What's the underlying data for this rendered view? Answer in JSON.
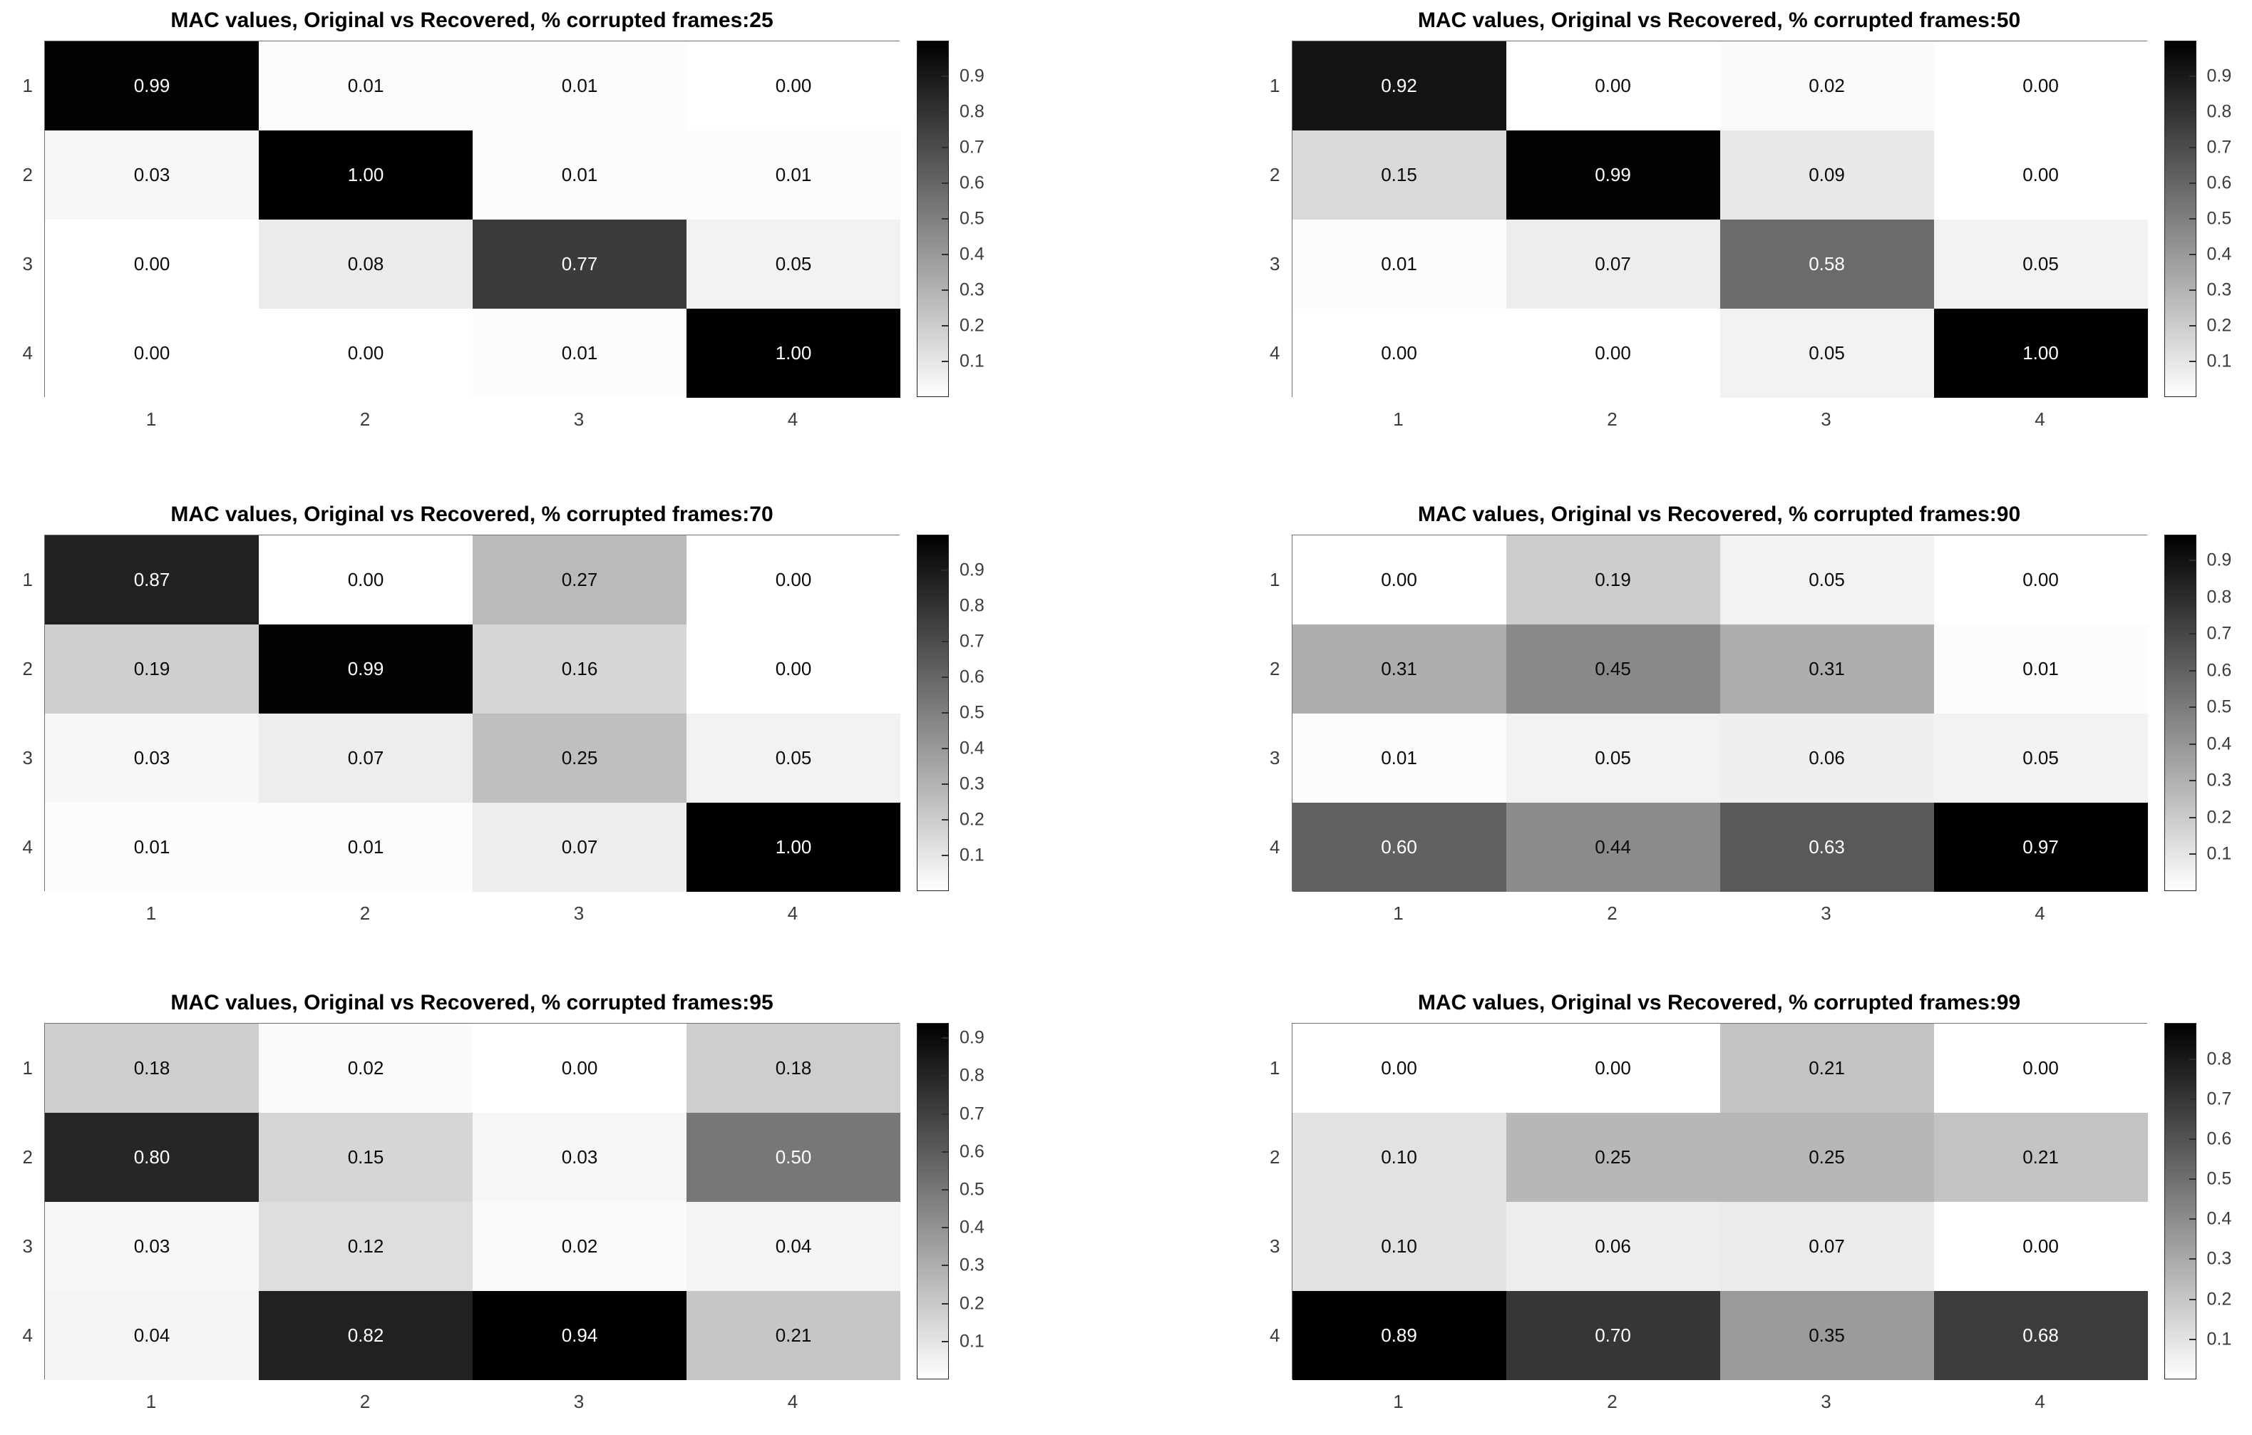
{
  "page": {
    "background": "#ffffff",
    "title_color": "#000000",
    "tick_label_color": "#3c3c3c",
    "cell_text_dark": "#0a0a0a",
    "cell_text_light": "#ffffff",
    "colormap": "flipped-gray (low=white, high=black)"
  },
  "chart_data": [
    {
      "type": "heatmap",
      "title": "MAC values, Original vs Recovered, % corrupted frames:25",
      "x_tick_labels": [
        "1",
        "2",
        "3",
        "4"
      ],
      "y_tick_labels": [
        "1",
        "2",
        "3",
        "4"
      ],
      "values": [
        [
          0.99,
          0.01,
          0.01,
          0.0
        ],
        [
          0.03,
          1.0,
          0.01,
          0.01
        ],
        [
          0.0,
          0.08,
          0.77,
          0.05
        ],
        [
          0.0,
          0.0,
          0.01,
          1.0
        ]
      ],
      "color_axis": {
        "min": 0.0,
        "max": 1.0
      },
      "colorbar_ticks": [
        0.1,
        0.2,
        0.3,
        0.4,
        0.5,
        0.6,
        0.7,
        0.8,
        0.9
      ],
      "legend_position": "right-colorbar",
      "grid": false
    },
    {
      "type": "heatmap",
      "title": "MAC values, Original vs Recovered, % corrupted frames:50",
      "x_tick_labels": [
        "1",
        "2",
        "3",
        "4"
      ],
      "y_tick_labels": [
        "1",
        "2",
        "3",
        "4"
      ],
      "values": [
        [
          0.92,
          0.0,
          0.02,
          0.0
        ],
        [
          0.15,
          0.99,
          0.09,
          0.0
        ],
        [
          0.01,
          0.07,
          0.58,
          0.05
        ],
        [
          0.0,
          0.0,
          0.05,
          1.0
        ]
      ],
      "color_axis": {
        "min": 0.0,
        "max": 1.0
      },
      "colorbar_ticks": [
        0.1,
        0.2,
        0.3,
        0.4,
        0.5,
        0.6,
        0.7,
        0.8,
        0.9
      ],
      "legend_position": "right-colorbar",
      "grid": false
    },
    {
      "type": "heatmap",
      "title": "MAC values, Original vs Recovered, % corrupted frames:70",
      "x_tick_labels": [
        "1",
        "2",
        "3",
        "4"
      ],
      "y_tick_labels": [
        "1",
        "2",
        "3",
        "4"
      ],
      "values": [
        [
          0.87,
          0.0,
          0.27,
          0.0
        ],
        [
          0.19,
          0.99,
          0.16,
          0.0
        ],
        [
          0.03,
          0.07,
          0.25,
          0.05
        ],
        [
          0.01,
          0.01,
          0.07,
          1.0
        ]
      ],
      "color_axis": {
        "min": 0.0,
        "max": 1.0
      },
      "colorbar_ticks": [
        0.1,
        0.2,
        0.3,
        0.4,
        0.5,
        0.6,
        0.7,
        0.8,
        0.9
      ],
      "legend_position": "right-colorbar",
      "grid": false
    },
    {
      "type": "heatmap",
      "title": "MAC values, Original vs Recovered, % corrupted frames:90",
      "x_tick_labels": [
        "1",
        "2",
        "3",
        "4"
      ],
      "y_tick_labels": [
        "1",
        "2",
        "3",
        "4"
      ],
      "values": [
        [
          0.0,
          0.19,
          0.05,
          0.0
        ],
        [
          0.31,
          0.45,
          0.31,
          0.01
        ],
        [
          0.01,
          0.05,
          0.06,
          0.05
        ],
        [
          0.6,
          0.44,
          0.63,
          0.97
        ]
      ],
      "color_axis": {
        "min": 0.0,
        "max": 0.97
      },
      "colorbar_ticks": [
        0.1,
        0.2,
        0.3,
        0.4,
        0.5,
        0.6,
        0.7,
        0.8,
        0.9
      ],
      "legend_position": "right-colorbar",
      "grid": false
    },
    {
      "type": "heatmap",
      "title": "MAC values, Original vs Recovered, % corrupted frames:95",
      "x_tick_labels": [
        "1",
        "2",
        "3",
        "4"
      ],
      "y_tick_labels": [
        "1",
        "2",
        "3",
        "4"
      ],
      "values": [
        [
          0.18,
          0.02,
          0.0,
          0.18
        ],
        [
          0.8,
          0.15,
          0.03,
          0.5
        ],
        [
          0.03,
          0.12,
          0.02,
          0.04
        ],
        [
          0.04,
          0.82,
          0.94,
          0.21
        ]
      ],
      "color_axis": {
        "min": 0.0,
        "max": 0.94
      },
      "colorbar_ticks": [
        0.1,
        0.2,
        0.3,
        0.4,
        0.5,
        0.6,
        0.7,
        0.8,
        0.9
      ],
      "legend_position": "right-colorbar",
      "grid": false
    },
    {
      "type": "heatmap",
      "title": "MAC values, Original vs Recovered, % corrupted frames:99",
      "x_tick_labels": [
        "1",
        "2",
        "3",
        "4"
      ],
      "y_tick_labels": [
        "1",
        "2",
        "3",
        "4"
      ],
      "values": [
        [
          0.0,
          0.0,
          0.21,
          0.0
        ],
        [
          0.1,
          0.25,
          0.25,
          0.21
        ],
        [
          0.1,
          0.06,
          0.07,
          0.0
        ],
        [
          0.89,
          0.7,
          0.35,
          0.68
        ]
      ],
      "color_axis": {
        "min": 0.0,
        "max": 0.89
      },
      "colorbar_ticks": [
        0.1,
        0.2,
        0.3,
        0.4,
        0.5,
        0.6,
        0.7,
        0.8
      ],
      "legend_position": "right-colorbar",
      "grid": false
    }
  ]
}
